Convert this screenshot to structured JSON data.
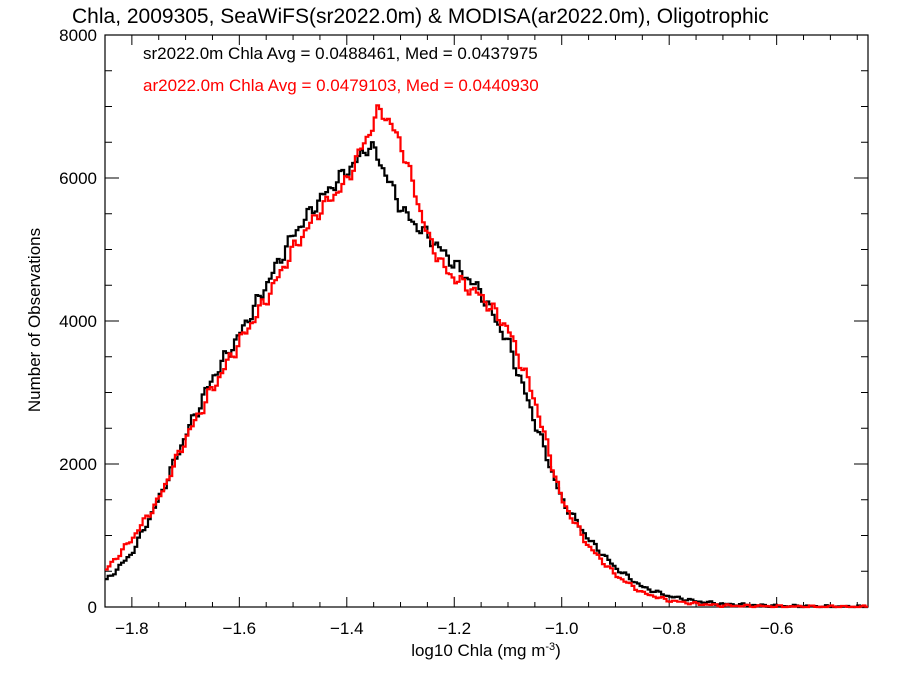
{
  "chart_data": {
    "type": "line",
    "title": "Chla, 2009305, SeaWiFS(sr2022.0m) & MODISA(ar2022.0m), Oligotrophic",
    "xlabel": "log10 Chla (mg m",
    "xlabel_sup": "-3",
    "xlabel_close": ")",
    "ylabel": "Number of Observations",
    "xlim": [
      -1.85,
      -0.43
    ],
    "ylim": [
      0,
      8000
    ],
    "xticks": [
      -1.8,
      -1.6,
      -1.4,
      -1.2,
      -1.0,
      -0.8,
      -0.6
    ],
    "xtick_labels": [
      "−1.8",
      "−1.6",
      "−1.4",
      "−1.2",
      "−1.0",
      "−0.8",
      "−0.6"
    ],
    "yticks": [
      0,
      2000,
      4000,
      6000,
      8000
    ],
    "ytick_labels": [
      "0",
      "2000",
      "4000",
      "6000",
      "8000"
    ],
    "grid": false,
    "legend_position": "top-left",
    "series": [
      {
        "name": "sr2022.0m",
        "color": "#000000",
        "x": [
          -1.85,
          -1.8,
          -1.75,
          -1.7,
          -1.65,
          -1.6,
          -1.55,
          -1.5,
          -1.45,
          -1.4,
          -1.38,
          -1.36,
          -1.35,
          -1.33,
          -1.3,
          -1.28,
          -1.25,
          -1.2,
          -1.15,
          -1.1,
          -1.05,
          -1.0,
          -0.95,
          -0.9,
          -0.85,
          -0.8,
          -0.75,
          -0.7,
          -0.6,
          -0.5,
          -0.43
        ],
        "values": [
          350,
          750,
          1500,
          2400,
          3200,
          3800,
          4500,
          5200,
          5700,
          6100,
          6250,
          6450,
          6400,
          6100,
          5600,
          5400,
          5200,
          4800,
          4400,
          3700,
          2600,
          1500,
          950,
          550,
          280,
          150,
          80,
          40,
          15,
          5,
          3
        ]
      },
      {
        "name": "ar2022.0m",
        "color": "#ff0000",
        "x": [
          -1.85,
          -1.8,
          -1.75,
          -1.7,
          -1.65,
          -1.6,
          -1.55,
          -1.5,
          -1.45,
          -1.4,
          -1.38,
          -1.36,
          -1.34,
          -1.33,
          -1.3,
          -1.28,
          -1.25,
          -1.22,
          -1.2,
          -1.15,
          -1.1,
          -1.05,
          -1.0,
          -0.95,
          -0.9,
          -0.85,
          -0.8,
          -0.75,
          -0.7,
          -0.6,
          -0.5,
          -0.43
        ],
        "values": [
          500,
          950,
          1500,
          2350,
          3050,
          3700,
          4300,
          5000,
          5550,
          5950,
          6300,
          6600,
          6950,
          6900,
          6500,
          6000,
          5200,
          4750,
          4600,
          4350,
          3900,
          2900,
          1500,
          850,
          450,
          200,
          90,
          45,
          20,
          8,
          4,
          2
        ]
      }
    ],
    "annotations": [
      {
        "text": "sr2022.0m Chla Avg = 0.0488461, Med = 0.0437975",
        "color": "#000000"
      },
      {
        "text": "ar2022.0m Chla Avg = 0.0479103, Med = 0.0440930",
        "color": "#ff0000"
      }
    ]
  }
}
